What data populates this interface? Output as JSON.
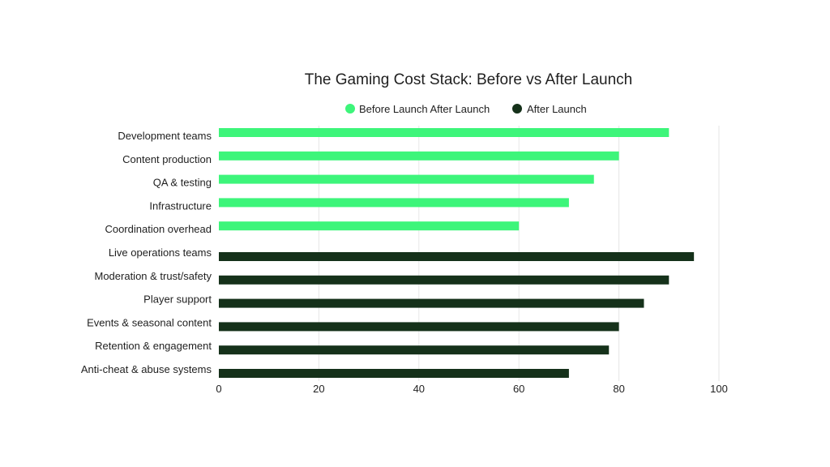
{
  "chart_data": {
    "type": "bar",
    "orientation": "horizontal",
    "title": "The Gaming Cost Stack: Before vs After Launch",
    "xlabel": "",
    "ylabel": "",
    "xlim": [
      0,
      100
    ],
    "x_ticks": [
      0,
      20,
      40,
      60,
      80,
      100
    ],
    "grid": true,
    "legend_position": "top",
    "categories": [
      "Development teams",
      "Content production",
      "QA & testing",
      "Infrastructure",
      "Coordination overhead",
      "Live operations teams",
      "Moderation & trust/safety",
      "Player support",
      "Events & seasonal content",
      "Retention & engagement",
      "Anti-cheat & abuse systems"
    ],
    "series": [
      {
        "name": "Before Launch After Launch",
        "color": "#3df57a",
        "values": [
          90,
          80,
          75,
          70,
          60,
          null,
          null,
          null,
          null,
          null,
          null
        ]
      },
      {
        "name": "After Launch",
        "color": "#15311a",
        "values": [
          null,
          null,
          null,
          null,
          null,
          95,
          90,
          85,
          80,
          78,
          70
        ]
      }
    ]
  }
}
